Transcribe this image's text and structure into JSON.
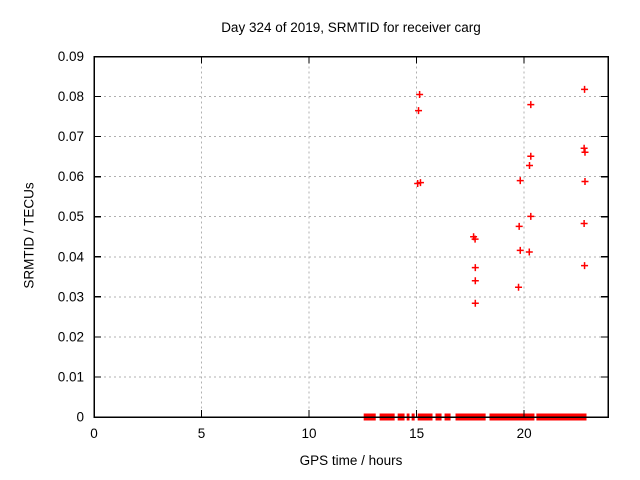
{
  "colors": {
    "marker": "#ff0000",
    "grid": "#b0b0b0",
    "border": "#000000",
    "background": "#ffffff",
    "text": "#000000"
  },
  "chart_data": {
    "type": "scatter",
    "title": "Day 324 of 2019, SRMTID for receiver carg",
    "xlabel": "GPS time / hours",
    "ylabel": "SRMTID / TECUs",
    "xlim": [
      0,
      23.9
    ],
    "ylim": [
      0,
      0.09
    ],
    "grid": true,
    "legend": "none",
    "marker": "plus",
    "xticks": [
      0,
      5,
      10,
      15,
      20
    ],
    "xtick_labels": [
      "0",
      "5",
      "10",
      "15",
      "20"
    ],
    "yticks": [
      0,
      0.01,
      0.02,
      0.03,
      0.04,
      0.05,
      0.06,
      0.07,
      0.08,
      0.09
    ],
    "ytick_labels": [
      "0",
      "0.01",
      "0.02",
      "0.03",
      "0.04",
      "0.05",
      "0.06",
      "0.07",
      "0.08",
      "0.09"
    ],
    "points": [
      [
        15.14,
        0.0805
      ],
      [
        15.09,
        0.0765
      ],
      [
        15.05,
        0.0583
      ],
      [
        15.18,
        0.0585
      ],
      [
        17.65,
        0.045
      ],
      [
        17.72,
        0.0444
      ],
      [
        17.73,
        0.0373
      ],
      [
        17.73,
        0.034
      ],
      [
        17.73,
        0.0284
      ],
      [
        19.82,
        0.059
      ],
      [
        19.77,
        0.0476
      ],
      [
        19.82,
        0.0416
      ],
      [
        19.74,
        0.0324
      ],
      [
        20.31,
        0.078
      ],
      [
        20.31,
        0.0651
      ],
      [
        20.25,
        0.0628
      ],
      [
        20.31,
        0.0501
      ],
      [
        20.24,
        0.0412
      ],
      [
        22.81,
        0.0818
      ],
      [
        22.79,
        0.0671
      ],
      [
        22.83,
        0.0661
      ],
      [
        22.83,
        0.0588
      ],
      [
        22.79,
        0.0483
      ],
      [
        22.81,
        0.0378
      ]
    ],
    "zero_band_segments": [
      [
        12.54,
        13.1
      ],
      [
        13.28,
        13.98
      ],
      [
        14.12,
        14.44
      ],
      [
        14.54,
        14.67
      ],
      [
        14.77,
        14.91
      ],
      [
        15.05,
        15.74
      ],
      [
        15.88,
        16.16
      ],
      [
        16.3,
        16.58
      ],
      [
        16.81,
        18.21
      ],
      [
        18.39,
        20.48
      ],
      [
        20.57,
        22.9
      ]
    ]
  }
}
